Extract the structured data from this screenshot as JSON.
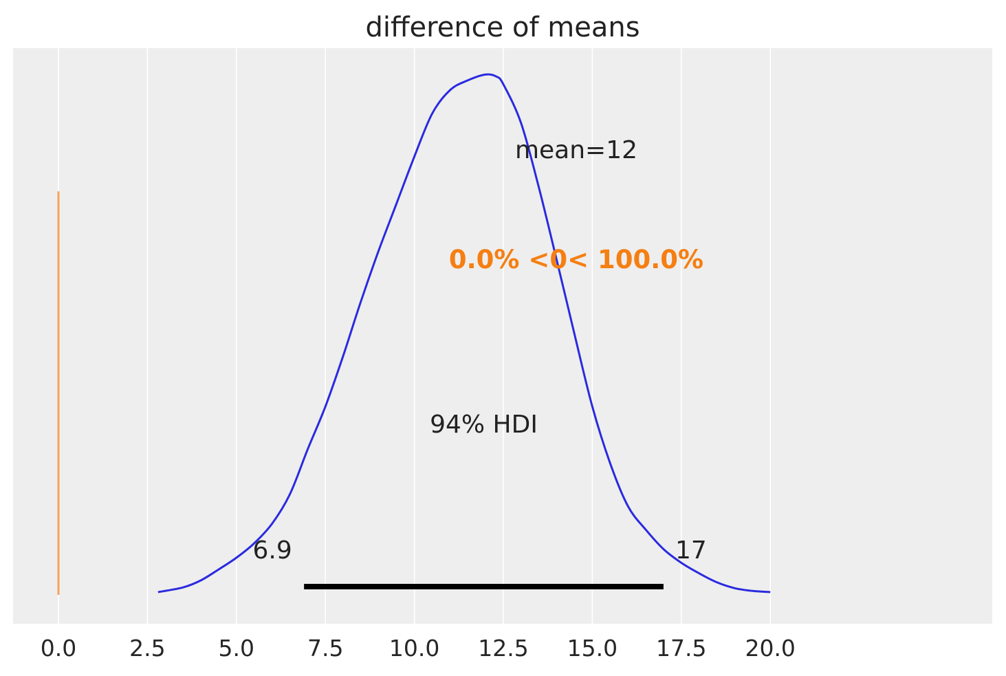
{
  "chart_data": {
    "type": "line",
    "title": "difference of means",
    "xlabel": "",
    "ylabel": "",
    "xlim": [
      -1.0,
      21.0
    ],
    "ylim": [
      0.0,
      1.0
    ],
    "grid": "x-only",
    "xticks": [
      0.0,
      2.5,
      5.0,
      7.5,
      10.0,
      12.5,
      15.0,
      17.5,
      20.0
    ],
    "xtick_labels": [
      "0.0",
      "2.5",
      "5.0",
      "7.5",
      "10.0",
      "12.5",
      "15.0",
      "17.5",
      "20.0"
    ],
    "series": [
      {
        "kind": "density",
        "x": [
          2.8,
          3.5,
          4.0,
          4.5,
          5.0,
          5.5,
          6.0,
          6.5,
          7.0,
          7.5,
          8.0,
          8.5,
          9.0,
          9.5,
          10.0,
          10.5,
          11.0,
          11.5,
          12.0,
          12.3,
          12.5,
          13.0,
          13.5,
          14.0,
          14.5,
          15.0,
          15.5,
          16.0,
          16.5,
          17.0,
          17.5,
          18.0,
          18.5,
          19.0,
          19.5,
          20.0
        ],
        "y": [
          0.0,
          0.012,
          0.03,
          0.058,
          0.088,
          0.125,
          0.175,
          0.25,
          0.365,
          0.475,
          0.605,
          0.745,
          0.875,
          0.995,
          1.115,
          1.225,
          1.285,
          1.31,
          1.325,
          1.32,
          1.3,
          1.2,
          1.035,
          0.85,
          0.66,
          0.475,
          0.33,
          0.22,
          0.16,
          0.11,
          0.075,
          0.048,
          0.025,
          0.01,
          0.003,
          0.0
        ]
      }
    ],
    "reference_line": {
      "x": 0.0,
      "y_from": 0.0,
      "y_to": 0.9,
      "color": "#f9a25e"
    },
    "hdi": {
      "low": 6.9,
      "high": 17,
      "low_label": "6.9",
      "high_label": "17",
      "label": "94% HDI",
      "color": "#000000"
    },
    "annotations": {
      "mean": "mean=12",
      "ref_prob": "0.0% <0< 100.0%"
    },
    "colors": {
      "background": "#eeeeee",
      "grid": "#ffffff",
      "density": "#2a2ae0",
      "ref_text": "#f57f12"
    }
  }
}
